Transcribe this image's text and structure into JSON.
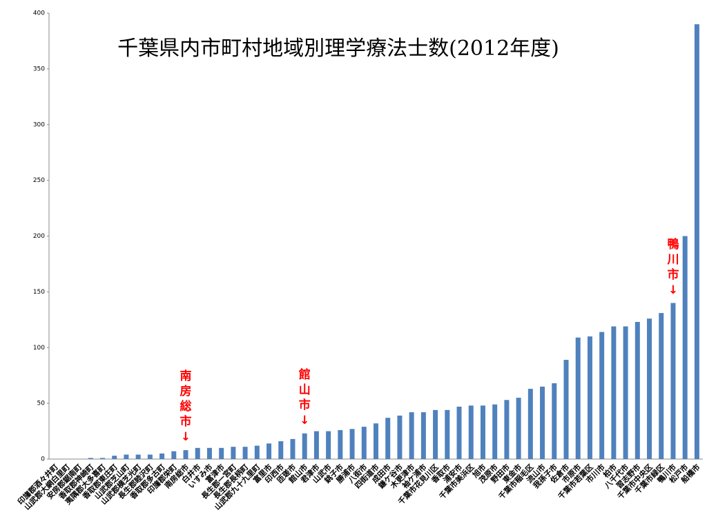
{
  "chart_data": {
    "type": "bar",
    "title": "千葉県内市町村地域別理学療法士数(2012年度)",
    "categories": [
      "印旛郡酒々井町",
      "山武郡大網白里町",
      "安房郡鋸南町",
      "香取郡神崎町",
      "夷隅郡大多喜町",
      "香取郡東庄町",
      "山武郡芝山町",
      "山武郡横芝光町",
      "長生郡睦沢町",
      "香取郡多古町",
      "印旛郡栄町",
      "南房総市",
      "白井市",
      "いすみ市",
      "富津市",
      "長生郡一宮町",
      "長生郡長柄町",
      "山武郡九十九里町",
      "富里市",
      "印西市",
      "匝瑳市",
      "館山市",
      "君津市",
      "山武市",
      "銚子市",
      "勝浦市",
      "八街市",
      "四街道市",
      "成田市",
      "鎌ケ谷市",
      "木更津市",
      "袖ケ浦市",
      "千葉市花見川区",
      "香取市",
      "浦安市",
      "千葉市美浜区",
      "旭市",
      "茂原市",
      "野田市",
      "東金市",
      "千葉市稲毛区",
      "流山市",
      "我孫子市",
      "佐倉市",
      "市原市",
      "千葉市若葉区",
      "市川市",
      "柏市",
      "八千代市",
      "習志野市",
      "千葉市中央区",
      "千葉市緑区",
      "鴨川市",
      "松戸市",
      "船橋市"
    ],
    "values": [
      0,
      0,
      0,
      1,
      1,
      3,
      4,
      4,
      4,
      5,
      7,
      8,
      10,
      10,
      10,
      11,
      11,
      12,
      14,
      16,
      18,
      23,
      25,
      25,
      26,
      27,
      29,
      32,
      37,
      39,
      42,
      42,
      44,
      44,
      47,
      48,
      48,
      49,
      53,
      55,
      63,
      65,
      68,
      89,
      109,
      110,
      114,
      119,
      119,
      123,
      126,
      131,
      140,
      200,
      390
    ],
    "color": "#4f81bd",
    "ylim": [
      0,
      400
    ],
    "yticks": [
      0,
      50,
      100,
      150,
      200,
      250,
      300,
      350,
      400
    ],
    "grid": false,
    "annotations": [
      {
        "text": "南房総市↓",
        "category": "南房総市"
      },
      {
        "text": "館山市↓",
        "category": "館山市"
      },
      {
        "text": "鴨川市↓",
        "category": "鴨川市"
      }
    ]
  }
}
